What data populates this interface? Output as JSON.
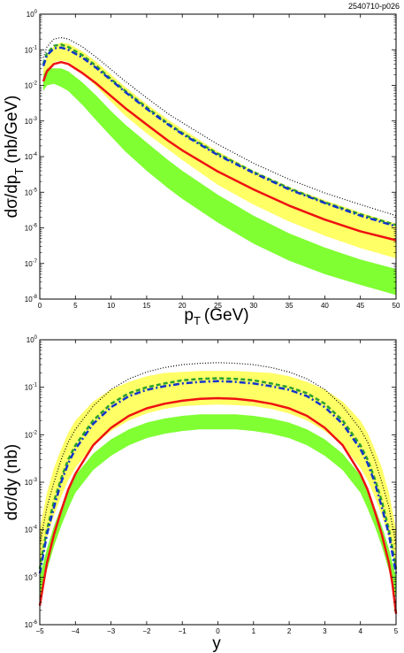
{
  "figure_id": "2540710-p026",
  "colors": {
    "yellow_band": "#ffff66",
    "green_band": "#80ff33",
    "red_curve": "#ee1111",
    "blue_curve": "#1133cc",
    "green_dashed": "#2ca02c",
    "black_dotted": "#000000"
  },
  "chart_data": [
    {
      "type": "line",
      "xlabel_main": "p",
      "xlabel_sub": "T",
      "xlabel_unit": "(GeV)",
      "ylabel_main": "dσ/dp",
      "ylabel_sub": "T",
      "ylabel_unit": "(nb/GeV)",
      "xlim": [
        0,
        50
      ],
      "ylim_log10": [
        -8,
        0
      ],
      "yscale": "log",
      "x_ticks": [
        "0",
        "5",
        "10",
        "15",
        "20",
        "25",
        "30",
        "35",
        "40",
        "45",
        "50"
      ],
      "y_tick_exponents": [
        "0",
        "-1",
        "-2",
        "-3",
        "-4",
        "-5",
        "-6",
        "-7",
        "-8"
      ],
      "grid": false,
      "x": [
        0.5,
        1,
        2,
        3,
        4,
        6,
        8,
        10,
        12,
        15,
        18,
        20,
        25,
        30,
        35,
        40,
        45,
        50
      ],
      "bands": [
        {
          "color_key": "yellow_band",
          "upper": [
            0.03,
            0.07,
            0.13,
            0.16,
            0.15,
            0.09,
            0.045,
            0.02,
            0.009,
            0.003,
            0.0011,
            0.0006,
            0.00014,
            4e-05,
            1.4e-05,
            6e-06,
            2.7e-06,
            1.3e-06
          ],
          "lower": [
            0.012,
            0.025,
            0.045,
            0.05,
            0.045,
            0.022,
            0.009,
            0.0035,
            0.0014,
            0.00045,
            0.00016,
            8e-05,
            1.6e-05,
            4.5e-06,
            1.5e-06,
            6e-07,
            2.7e-07,
            1.4e-07
          ]
        },
        {
          "color_key": "green_band",
          "upper": [
            0.02,
            0.03,
            0.03,
            0.03,
            0.025,
            0.012,
            0.005,
            0.0019,
            0.0008,
            0.00025,
            8e-05,
            4e-05,
            8.5e-06,
            2.2e-06,
            7e-07,
            2.8e-07,
            1.3e-07,
            7e-08
          ],
          "lower": [
            0.007,
            0.01,
            0.011,
            0.009,
            0.007,
            0.0028,
            0.001,
            0.00037,
            0.00014,
            4e-05,
            1.3e-05,
            6.5e-06,
            1.4e-06,
            3.6e-07,
            1.2e-07,
            5e-08,
            2.5e-08,
            1.3e-08
          ]
        }
      ],
      "series": [
        {
          "color_key": "black_dotted",
          "style": "dotted",
          "values": [
            0.06,
            0.12,
            0.2,
            0.22,
            0.2,
            0.12,
            0.06,
            0.028,
            0.013,
            0.0045,
            0.0016,
            0.0009,
            0.00022,
            6.5e-05,
            2.3e-05,
            9.5e-06,
            4.5e-06,
            2.2e-06
          ]
        },
        {
          "color_key": "green_dashed",
          "style": "dashed",
          "values": [
            0.04,
            0.08,
            0.13,
            0.14,
            0.12,
            0.07,
            0.034,
            0.015,
            0.007,
            0.0024,
            0.00085,
            0.00046,
            0.00012,
            3.7e-05,
            1.3e-05,
            5.2e-06,
            2.4e-06,
            1.2e-06
          ]
        },
        {
          "color_key": "blue_curve",
          "style": "dashdot",
          "values": [
            0.035,
            0.07,
            0.11,
            0.115,
            0.1,
            0.06,
            0.03,
            0.014,
            0.0065,
            0.0022,
            0.0008,
            0.00043,
            0.00011,
            3.5e-05,
            1.2e-05,
            5e-06,
            2.2e-06,
            1.1e-06
          ]
        },
        {
          "color_key": "red_curve",
          "style": "solid",
          "values": [
            0.013,
            0.025,
            0.04,
            0.045,
            0.04,
            0.022,
            0.011,
            0.005,
            0.0023,
            0.0008,
            0.00028,
            0.00015,
            3.8e-05,
            1.2e-05,
            4.2e-06,
            1.7e-06,
            8e-07,
            4.5e-07
          ]
        }
      ]
    },
    {
      "type": "line",
      "xlabel_main": "y",
      "ylabel_main": "dσ/dy",
      "ylabel_unit": "(nb)",
      "xlim": [
        -5,
        5
      ],
      "ylim_log10": [
        -6,
        0
      ],
      "yscale": "log",
      "x_ticks": [
        "−5",
        "−4",
        "−3",
        "−2",
        "−1",
        "0",
        "1",
        "2",
        "3",
        "4",
        "5"
      ],
      "y_tick_exponents": [
        "0",
        "-1",
        "-2",
        "-3",
        "-4",
        "-5",
        "-6"
      ],
      "grid": false,
      "x": [
        -5,
        -4.9,
        -4.8,
        -4.6,
        -4.4,
        -4.2,
        -4,
        -3.5,
        -3,
        -2.5,
        -2,
        -1.5,
        -1,
        -0.5,
        0,
        0.5,
        1,
        1.5,
        2,
        2.5,
        3,
        3.5,
        4,
        4.2,
        4.4,
        4.6,
        4.8,
        4.9,
        5
      ],
      "bands": [
        {
          "color_key": "yellow_band",
          "upper": [
            0.0001,
            0.00025,
            0.0006,
            0.002,
            0.005,
            0.011,
            0.02,
            0.05,
            0.09,
            0.13,
            0.17,
            0.2,
            0.21,
            0.22,
            0.22,
            0.22,
            0.21,
            0.2,
            0.17,
            0.13,
            0.09,
            0.05,
            0.02,
            0.011,
            0.005,
            0.002,
            0.0006,
            0.00025,
            0.0001
          ],
          "lower": [
            1.2e-05,
            3e-05,
            7e-05,
            0.0002,
            0.0005,
            0.0011,
            0.002,
            0.006,
            0.012,
            0.02,
            0.028,
            0.035,
            0.04,
            0.042,
            0.043,
            0.042,
            0.04,
            0.035,
            0.028,
            0.02,
            0.012,
            0.006,
            0.002,
            0.0011,
            0.0005,
            0.0002,
            7e-05,
            3e-05,
            1.2e-05
          ]
        },
        {
          "color_key": "green_band",
          "upper": [
            1e-05,
            2e-05,
            4e-05,
            0.00012,
            0.0003,
            0.0007,
            0.0014,
            0.004,
            0.008,
            0.013,
            0.018,
            0.022,
            0.025,
            0.027,
            0.027,
            0.027,
            0.025,
            0.022,
            0.018,
            0.013,
            0.008,
            0.004,
            0.0014,
            0.0007,
            0.0003,
            0.00012,
            4e-05,
            2e-05,
            1e-05
          ],
          "lower": [
            3.5e-06,
            7e-06,
            1.4e-05,
            4.5e-05,
            0.00012,
            0.00028,
            0.0006,
            0.0018,
            0.0036,
            0.006,
            0.0085,
            0.0105,
            0.012,
            0.013,
            0.013,
            0.013,
            0.012,
            0.0105,
            0.0085,
            0.006,
            0.0036,
            0.0018,
            0.0006,
            0.00028,
            0.00012,
            4.5e-05,
            1.4e-05,
            7e-06,
            3.5e-06
          ]
        }
      ],
      "series": [
        {
          "color_key": "black_dotted",
          "style": "dotted",
          "values": [
            5e-05,
            0.00012,
            0.0003,
            0.001,
            0.003,
            0.007,
            0.013,
            0.04,
            0.09,
            0.15,
            0.21,
            0.26,
            0.3,
            0.32,
            0.33,
            0.32,
            0.3,
            0.26,
            0.21,
            0.15,
            0.09,
            0.04,
            0.013,
            0.007,
            0.003,
            0.001,
            0.0003,
            0.00012,
            5e-05
          ]
        },
        {
          "color_key": "green_dashed",
          "style": "dashed",
          "values": [
            1.5e-05,
            4e-05,
            0.0001,
            0.0004,
            0.0012,
            0.003,
            0.006,
            0.02,
            0.045,
            0.075,
            0.1,
            0.12,
            0.14,
            0.15,
            0.155,
            0.15,
            0.14,
            0.12,
            0.1,
            0.075,
            0.045,
            0.02,
            0.006,
            0.003,
            0.0012,
            0.0004,
            0.0001,
            4e-05,
            1.5e-05
          ]
        },
        {
          "color_key": "blue_curve",
          "style": "dashdot",
          "values": [
            1.2e-05,
            3e-05,
            8e-05,
            0.0003,
            0.001,
            0.0025,
            0.005,
            0.017,
            0.038,
            0.065,
            0.088,
            0.105,
            0.12,
            0.13,
            0.135,
            0.13,
            0.12,
            0.105,
            0.088,
            0.065,
            0.038,
            0.017,
            0.005,
            0.0025,
            0.001,
            0.0003,
            8e-05,
            3e-05,
            1.2e-05
          ]
        },
        {
          "color_key": "red_curve",
          "style": "solid",
          "values": [
            2.5e-06,
            7e-06,
            2e-05,
            8e-05,
            0.00025,
            0.0007,
            0.0015,
            0.006,
            0.014,
            0.025,
            0.036,
            0.045,
            0.052,
            0.057,
            0.059,
            0.057,
            0.052,
            0.045,
            0.036,
            0.025,
            0.014,
            0.006,
            0.0015,
            0.0007,
            0.00025,
            8e-05,
            2e-05,
            7e-06,
            1.7e-06
          ]
        }
      ]
    }
  ]
}
